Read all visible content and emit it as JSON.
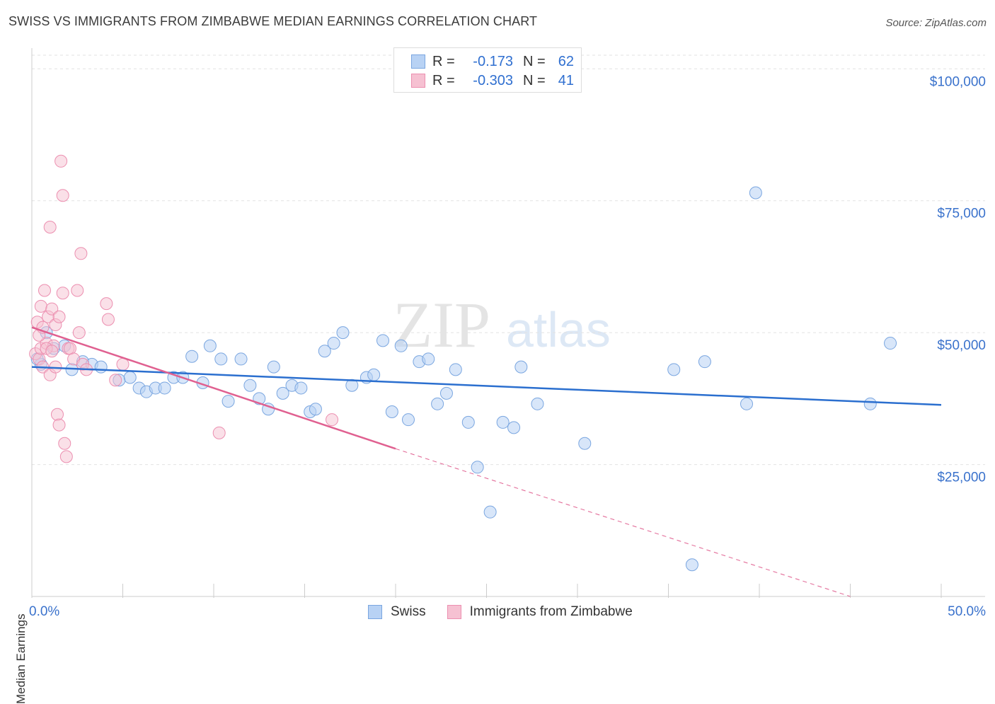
{
  "title": "SWISS VS IMMIGRANTS FROM ZIMBABWE MEDIAN EARNINGS CORRELATION CHART",
  "source": "Source: ZipAtlas.com",
  "watermark": {
    "zip": "ZIP",
    "atlas": "atlas"
  },
  "colors": {
    "swiss_fill": "#b8d2f4",
    "swiss_stroke": "#7aa6e0",
    "swiss_line": "#2b6fcf",
    "zim_fill": "#f6c1d2",
    "zim_stroke": "#ec8fb0",
    "zim_line": "#e06090",
    "axis_text": "#3a72cc"
  },
  "legend_top": {
    "rows": [
      {
        "r_label": "R =",
        "r_value": "-0.173",
        "n_label": "N =",
        "n_value": "62"
      },
      {
        "r_label": "R =",
        "r_value": "-0.303",
        "n_label": "N =",
        "n_value": "41"
      }
    ]
  },
  "legend_bottom": [
    "Swiss",
    "Immigrants from Zimbabwe"
  ],
  "chart_data": {
    "type": "scatter",
    "title": "SWISS VS IMMIGRANTS FROM ZIMBABWE MEDIAN EARNINGS CORRELATION CHART",
    "xlabel": "",
    "ylabel": "Median Earnings",
    "xlim": [
      0,
      50
    ],
    "ylim": [
      0,
      105000
    ],
    "x_tick_labels": [
      "0.0%",
      "50.0%"
    ],
    "y_ticks": [
      25000,
      50000,
      75000,
      100000
    ],
    "y_tick_labels": [
      "$25,000",
      "$50,000",
      "$75,000",
      "$100,000"
    ],
    "grid": true,
    "legend_position": "top-center",
    "series": [
      {
        "name": "Swiss",
        "r": -0.173,
        "n": 62,
        "trend": {
          "x": [
            0,
            50
          ],
          "y": [
            43500,
            36300
          ]
        },
        "points": [
          [
            0.5,
            44000
          ],
          [
            0.8,
            50000
          ],
          [
            1.2,
            47000
          ],
          [
            1.8,
            47500
          ],
          [
            2.2,
            43000
          ],
          [
            2.8,
            44500
          ],
          [
            3.3,
            44000
          ],
          [
            3.8,
            43500
          ],
          [
            4.8,
            41000
          ],
          [
            5.4,
            41500
          ],
          [
            5.9,
            39500
          ],
          [
            6.3,
            38800
          ],
          [
            6.8,
            39500
          ],
          [
            7.3,
            39500
          ],
          [
            7.8,
            41500
          ],
          [
            8.3,
            41500
          ],
          [
            8.8,
            45500
          ],
          [
            9.4,
            40500
          ],
          [
            9.8,
            47500
          ],
          [
            10.4,
            45000
          ],
          [
            10.8,
            37000
          ],
          [
            11.5,
            45000
          ],
          [
            12.0,
            40000
          ],
          [
            12.5,
            37500
          ],
          [
            13.0,
            35500
          ],
          [
            13.3,
            43500
          ],
          [
            13.8,
            38500
          ],
          [
            14.3,
            40000
          ],
          [
            14.8,
            39500
          ],
          [
            15.3,
            35000
          ],
          [
            15.6,
            35500
          ],
          [
            16.1,
            46500
          ],
          [
            16.6,
            48000
          ],
          [
            17.1,
            50000
          ],
          [
            17.6,
            40000
          ],
          [
            18.4,
            41500
          ],
          [
            18.8,
            42000
          ],
          [
            19.3,
            48500
          ],
          [
            19.8,
            35000
          ],
          [
            20.3,
            47500
          ],
          [
            20.7,
            33500
          ],
          [
            21.3,
            44500
          ],
          [
            21.8,
            45000
          ],
          [
            22.3,
            36500
          ],
          [
            22.8,
            38500
          ],
          [
            23.3,
            43000
          ],
          [
            24.0,
            33000
          ],
          [
            24.5,
            24500
          ],
          [
            25.2,
            16000
          ],
          [
            25.9,
            33000
          ],
          [
            26.5,
            32000
          ],
          [
            26.9,
            43500
          ],
          [
            27.8,
            36500
          ],
          [
            30.4,
            29000
          ],
          [
            35.3,
            43000
          ],
          [
            36.3,
            6000
          ],
          [
            37.0,
            44500
          ],
          [
            39.3,
            36500
          ],
          [
            39.8,
            76500
          ],
          [
            46.1,
            36500
          ],
          [
            47.2,
            48000
          ],
          [
            0.3,
            45000
          ]
        ]
      },
      {
        "name": "Immigrants from Zimbabwe",
        "r": -0.303,
        "n": 41,
        "trend": {
          "x": [
            0,
            20
          ],
          "y": [
            51000,
            28000
          ]
        },
        "trend_dashed": {
          "x": [
            20,
            45
          ],
          "y": [
            28000,
            0
          ]
        },
        "points": [
          [
            0.2,
            46000
          ],
          [
            0.3,
            52000
          ],
          [
            0.4,
            45000
          ],
          [
            0.5,
            55000
          ],
          [
            0.5,
            47000
          ],
          [
            0.6,
            43500
          ],
          [
            0.7,
            58000
          ],
          [
            0.8,
            48000
          ],
          [
            0.9,
            53000
          ],
          [
            1.0,
            42000
          ],
          [
            1.0,
            70000
          ],
          [
            1.1,
            54500
          ],
          [
            1.2,
            47500
          ],
          [
            1.3,
            51500
          ],
          [
            1.3,
            43500
          ],
          [
            1.4,
            34500
          ],
          [
            1.5,
            32500
          ],
          [
            1.5,
            53000
          ],
          [
            1.6,
            82500
          ],
          [
            1.7,
            76000
          ],
          [
            1.7,
            57500
          ],
          [
            1.8,
            29000
          ],
          [
            1.9,
            26500
          ],
          [
            2.0,
            47000
          ],
          [
            2.1,
            47000
          ],
          [
            2.3,
            45000
          ],
          [
            2.5,
            58000
          ],
          [
            2.6,
            50000
          ],
          [
            2.7,
            65000
          ],
          [
            2.8,
            44000
          ],
          [
            3.0,
            43000
          ],
          [
            4.1,
            55500
          ],
          [
            4.2,
            52500
          ],
          [
            4.6,
            41000
          ],
          [
            5.0,
            44000
          ],
          [
            10.3,
            31000
          ],
          [
            16.5,
            33500
          ],
          [
            0.4,
            49500
          ],
          [
            0.8,
            47000
          ],
          [
            1.1,
            46500
          ],
          [
            0.6,
            51000
          ]
        ]
      }
    ]
  }
}
